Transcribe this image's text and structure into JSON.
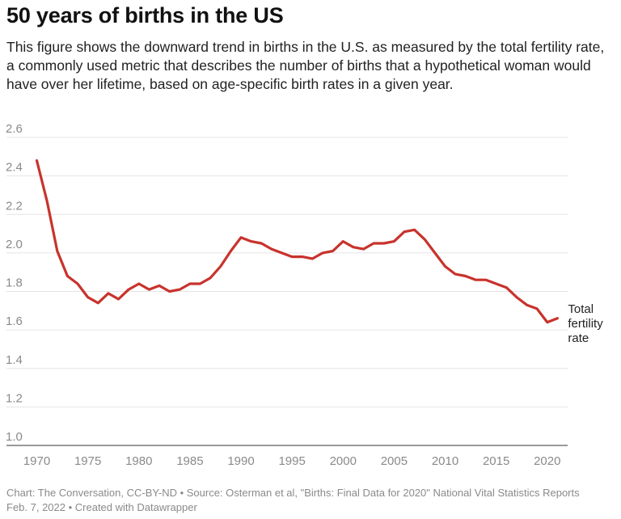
{
  "title": "50 years of births in the US",
  "description": "This figure shows the downward trend in births in the U.S. as measured by the total fertility rate, a commonly used metric that describes the number of births that a hypothetical woman would have over her lifetime, based on age-specific birth rates in a given year.",
  "footer": {
    "line1": "Chart: The Conversation, CC-BY-ND • Source: Osterman et al, \"Births: Final Data for 2020\" National Vital Statistics Reports",
    "line2": "Feb. 7, 2022 • Created with Datawrapper"
  },
  "colors": {
    "line": "#c8332c",
    "grid": "#e4e4e4",
    "axis": "#333333",
    "tick_text": "#8a8a8a"
  },
  "chart_data": {
    "type": "line",
    "title": "",
    "xlabel": "",
    "ylabel": "",
    "xlim": [
      1969.8,
      2022
    ],
    "ylim": [
      1.0,
      2.6
    ],
    "x_ticks": [
      1970,
      1975,
      1980,
      1985,
      1990,
      1995,
      2000,
      2005,
      2010,
      2015,
      2020
    ],
    "y_ticks": [
      1.0,
      1.2,
      1.4,
      1.6,
      1.8,
      2.0,
      2.2,
      2.4,
      2.6
    ],
    "y_tick_labels": [
      "1.0",
      "1.2",
      "1.4",
      "1.6",
      "1.8",
      "2.0",
      "2.2",
      "2.4",
      "2.6"
    ],
    "grid": true,
    "legend": "none",
    "series": [
      {
        "name": "Total fertility rate",
        "label_lines": [
          "Total",
          "fertility",
          "rate"
        ],
        "x": [
          1970,
          1971,
          1972,
          1973,
          1974,
          1975,
          1976,
          1977,
          1978,
          1979,
          1980,
          1981,
          1982,
          1983,
          1984,
          1985,
          1986,
          1987,
          1988,
          1989,
          1990,
          1991,
          1992,
          1993,
          1994,
          1995,
          1996,
          1997,
          1998,
          1999,
          2000,
          2001,
          2002,
          2003,
          2004,
          2005,
          2006,
          2007,
          2008,
          2009,
          2010,
          2011,
          2012,
          2013,
          2014,
          2015,
          2016,
          2017,
          2018,
          2019,
          2020,
          2021
        ],
        "values": [
          2.48,
          2.27,
          2.01,
          1.88,
          1.84,
          1.77,
          1.74,
          1.79,
          1.76,
          1.81,
          1.84,
          1.81,
          1.83,
          1.8,
          1.81,
          1.84,
          1.84,
          1.87,
          1.93,
          2.01,
          2.08,
          2.06,
          2.05,
          2.02,
          2.0,
          1.98,
          1.98,
          1.97,
          2.0,
          2.01,
          2.06,
          2.03,
          2.02,
          2.05,
          2.05,
          2.06,
          2.11,
          2.12,
          2.07,
          2.0,
          1.93,
          1.89,
          1.88,
          1.86,
          1.86,
          1.84,
          1.82,
          1.77,
          1.73,
          1.71,
          1.64,
          1.66
        ]
      }
    ]
  }
}
